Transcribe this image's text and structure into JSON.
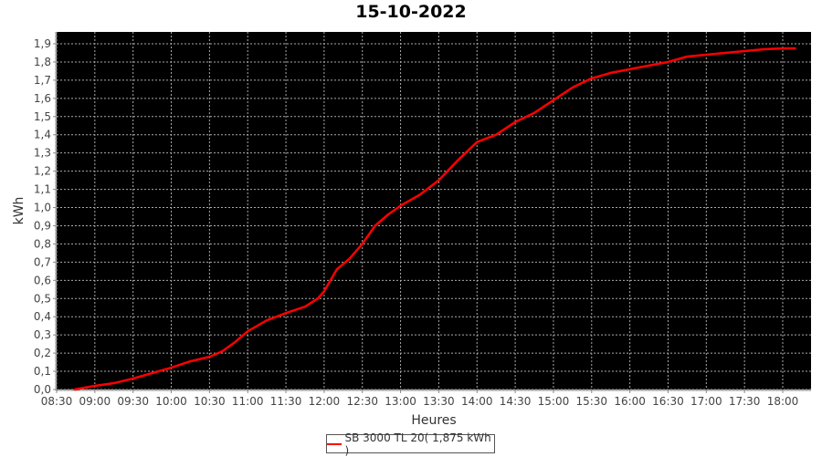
{
  "chart_data": {
    "type": "line",
    "title": "15-10-2022",
    "xlabel": "Heures",
    "ylabel": "kWh",
    "xlim": [
      "08:30",
      "18:30"
    ],
    "ylim": [
      0,
      1.95
    ],
    "grid": true,
    "background": "#000000",
    "legend_position": "bottom",
    "x_ticks": [
      "08:30",
      "09:00",
      "09:30",
      "10:00",
      "10:30",
      "11:00",
      "11:30",
      "12:00",
      "12:30",
      "13:00",
      "13:30",
      "14:00",
      "14:30",
      "15:00",
      "15:30",
      "16:00",
      "16:30",
      "17:00",
      "17:30",
      "18:00"
    ],
    "y_ticks": [
      "0,0",
      "0,1",
      "0,2",
      "0,3",
      "0,4",
      "0,5",
      "0,6",
      "0,7",
      "0,8",
      "0,9",
      "1,0",
      "1,1",
      "1,2",
      "1,3",
      "1,4",
      "1,5",
      "1,6",
      "1,7",
      "1,8",
      "1,9"
    ],
    "series": [
      {
        "name": "SB 3000 TL 20( 1,875 kWh )",
        "color": "#ff0000",
        "x": [
          "08:44",
          "09:00",
          "09:15",
          "09:30",
          "09:45",
          "10:00",
          "10:15",
          "10:30",
          "10:40",
          "10:50",
          "11:00",
          "11:15",
          "11:30",
          "11:45",
          "11:55",
          "12:00",
          "12:05",
          "12:10",
          "12:20",
          "12:30",
          "12:40",
          "12:50",
          "13:00",
          "13:15",
          "13:30",
          "13:45",
          "14:00",
          "14:15",
          "14:30",
          "14:45",
          "15:00",
          "15:15",
          "15:30",
          "15:45",
          "16:00",
          "16:15",
          "16:30",
          "16:45",
          "17:00",
          "17:15",
          "17:30",
          "17:45",
          "18:00",
          "18:10"
        ],
        "y": [
          0.0,
          0.02,
          0.035,
          0.06,
          0.09,
          0.12,
          0.155,
          0.18,
          0.21,
          0.26,
          0.32,
          0.38,
          0.42,
          0.455,
          0.5,
          0.54,
          0.6,
          0.66,
          0.72,
          0.8,
          0.9,
          0.96,
          1.01,
          1.07,
          1.15,
          1.26,
          1.36,
          1.4,
          1.47,
          1.52,
          1.59,
          1.66,
          1.71,
          1.74,
          1.76,
          1.78,
          1.8,
          1.83,
          1.84,
          1.85,
          1.86,
          1.87,
          1.875,
          1.875
        ]
      }
    ]
  }
}
